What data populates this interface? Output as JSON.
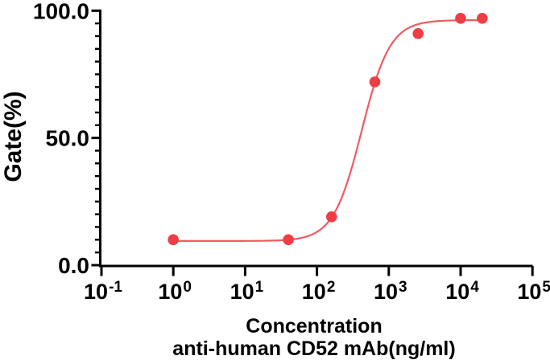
{
  "chart_data": {
    "type": "scatter",
    "title": "",
    "ylabel": "Gate(%)",
    "xlabel_line1": "Concentration",
    "xlabel_line2": "anti-human CD52 mAb(ng/ml)",
    "x_scale": "log10",
    "xlim_exponents": [
      -1,
      5
    ],
    "ylim": [
      0,
      100
    ],
    "grid": false,
    "legend": "none",
    "x_tick_base": "10",
    "x_tick_exponents": [
      -1,
      0,
      1,
      2,
      3,
      4,
      5
    ],
    "y_tick_values": [
      0,
      50,
      100
    ],
    "y_tick_labels": [
      "0.0",
      "50.0",
      "100.0"
    ],
    "y_minor_tick_step": 5,
    "series": [
      {
        "x": [
          1,
          40,
          160,
          640,
          2560,
          10000,
          20000
        ],
        "y": [
          10,
          10,
          19,
          72,
          91,
          97,
          97
        ],
        "fit_curve": {
          "model": "4PL",
          "bottom": 9.5,
          "top": 96.3,
          "ec50": 420,
          "hill": 2.2,
          "x_start": 1,
          "x_end": 20000
        }
      }
    ],
    "colors": {
      "marker": "#ee3e45",
      "curve": "#f25a60",
      "axis": "#000000",
      "background": "#ffffff"
    }
  }
}
